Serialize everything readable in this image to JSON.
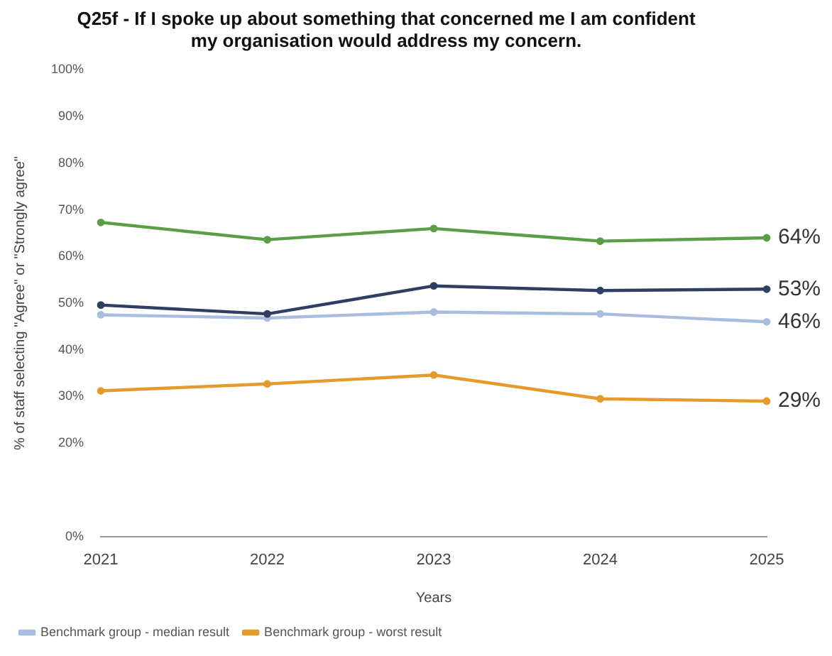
{
  "chart_data": {
    "type": "line",
    "title": "Q25f - If I spoke up about something that concerned me I am confident my organisation would address my concern.",
    "xlabel": "Years",
    "ylabel": "% of staff selecting \"Agree\" or \"Strongly agree\"",
    "categories": [
      "2021",
      "2022",
      "2023",
      "2024",
      "2025"
    ],
    "series": [
      {
        "color": "#5a9e48",
        "values": [
          67.3,
          63.6,
          66,
          63.3,
          64
        ],
        "value_labels": [
          null,
          null,
          null,
          null,
          "64%"
        ]
      },
      {
        "color": "#2e3f63",
        "values": [
          49.6,
          47.7,
          53.7,
          52.7,
          53
        ],
        "value_labels": [
          null,
          null,
          null,
          null,
          "53%"
        ]
      },
      {
        "name": "Benchmark group - median result",
        "color": "#a9bde0",
        "values": [
          47.5,
          46.8,
          48.1,
          47.7,
          46
        ],
        "value_labels": [
          null,
          null,
          null,
          null,
          "46%"
        ]
      },
      {
        "name": "Benchmark group - worst result",
        "color": "#e59a2c",
        "values": [
          31.2,
          32.7,
          34.6,
          29.5,
          29
        ],
        "value_labels": [
          null,
          null,
          null,
          null,
          "29%"
        ]
      }
    ],
    "ylim": [
      0,
      100
    ],
    "yticks": [
      {
        "value": 0,
        "label": "0%"
      },
      {
        "value": 20,
        "label": "20%"
      },
      {
        "value": 30,
        "label": "30%"
      },
      {
        "value": 40,
        "label": "40%"
      },
      {
        "value": 50,
        "label": "50%"
      },
      {
        "value": 60,
        "label": "60%"
      },
      {
        "value": 70,
        "label": "70%"
      },
      {
        "value": 80,
        "label": "80%"
      },
      {
        "value": 90,
        "label": "90%"
      },
      {
        "value": 100,
        "label": "100%"
      }
    ],
    "grid": false,
    "legend": "bottom left",
    "marker": "circle",
    "line_style": "solid"
  }
}
